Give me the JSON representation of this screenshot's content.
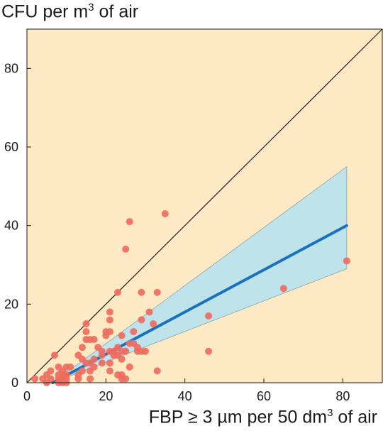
{
  "chart_data": {
    "type": "scatter",
    "title": "",
    "ylabel_main": "CFU per m",
    "ylabel_sup": "3",
    "ylabel_rest": " of air",
    "xlabel_main": "FBP ≥ 3 µm per 50 dm",
    "xlabel_sup": "3",
    "xlabel_rest": " of air",
    "xlim": [
      0,
      90
    ],
    "ylim": [
      0,
      90
    ],
    "x_ticks": [
      0,
      20,
      40,
      60,
      80
    ],
    "y_ticks": [
      0,
      20,
      40,
      60,
      80
    ],
    "colors": {
      "background": "#fde9c4",
      "points": "#ef6b5f",
      "regression": "#1a72bd",
      "band": "#bfe3ea",
      "identity": "#1a1a1a"
    },
    "identity_line": [
      [
        0,
        0
      ],
      [
        90,
        90
      ]
    ],
    "regression_line": [
      [
        6.5,
        0
      ],
      [
        81,
        40
      ]
    ],
    "confidence_band": {
      "upper": [
        [
          6.5,
          0
        ],
        [
          81,
          55
        ]
      ],
      "lower": [
        [
          6.5,
          0
        ],
        [
          81,
          29
        ]
      ]
    },
    "points": [
      [
        2,
        1
      ],
      [
        4,
        1
      ],
      [
        5,
        0
      ],
      [
        5,
        2
      ],
      [
        6,
        1
      ],
      [
        6,
        3
      ],
      [
        7,
        7
      ],
      [
        8,
        0
      ],
      [
        8,
        1
      ],
      [
        8,
        2
      ],
      [
        8,
        4
      ],
      [
        9,
        0
      ],
      [
        9,
        1
      ],
      [
        9,
        2
      ],
      [
        9,
        3
      ],
      [
        10,
        0
      ],
      [
        10,
        1
      ],
      [
        10,
        2
      ],
      [
        10,
        4
      ],
      [
        11,
        4
      ],
      [
        13,
        1
      ],
      [
        13,
        2
      ],
      [
        13,
        7
      ],
      [
        14,
        3
      ],
      [
        14,
        6
      ],
      [
        14,
        9
      ],
      [
        15,
        5
      ],
      [
        15,
        11
      ],
      [
        15,
        13
      ],
      [
        15,
        15
      ],
      [
        16,
        1
      ],
      [
        16,
        3
      ],
      [
        16,
        5
      ],
      [
        16,
        11
      ],
      [
        17,
        4
      ],
      [
        17,
        6
      ],
      [
        17,
        11
      ],
      [
        18,
        9
      ],
      [
        19,
        5
      ],
      [
        19,
        7
      ],
      [
        19,
        8
      ],
      [
        20,
        12
      ],
      [
        20,
        13
      ],
      [
        21,
        3
      ],
      [
        21,
        5
      ],
      [
        21,
        8
      ],
      [
        21,
        13
      ],
      [
        21,
        16
      ],
      [
        21,
        18
      ],
      [
        22,
        7
      ],
      [
        22,
        8
      ],
      [
        23,
        2
      ],
      [
        23,
        7
      ],
      [
        23,
        9
      ],
      [
        23,
        23
      ],
      [
        24,
        1
      ],
      [
        24,
        2
      ],
      [
        24,
        6
      ],
      [
        24,
        8
      ],
      [
        24,
        12
      ],
      [
        25,
        1
      ],
      [
        25,
        8
      ],
      [
        25,
        34
      ],
      [
        26,
        4
      ],
      [
        26,
        10
      ],
      [
        26,
        41
      ],
      [
        27,
        10
      ],
      [
        27,
        13
      ],
      [
        28,
        8
      ],
      [
        28,
        9
      ],
      [
        29,
        8
      ],
      [
        29,
        16
      ],
      [
        29,
        23
      ],
      [
        30,
        8
      ],
      [
        31,
        18
      ],
      [
        32,
        15
      ],
      [
        33,
        3
      ],
      [
        33,
        23
      ],
      [
        35,
        43
      ],
      [
        46,
        8
      ],
      [
        46,
        17
      ],
      [
        65,
        24
      ],
      [
        81,
        31
      ]
    ]
  }
}
